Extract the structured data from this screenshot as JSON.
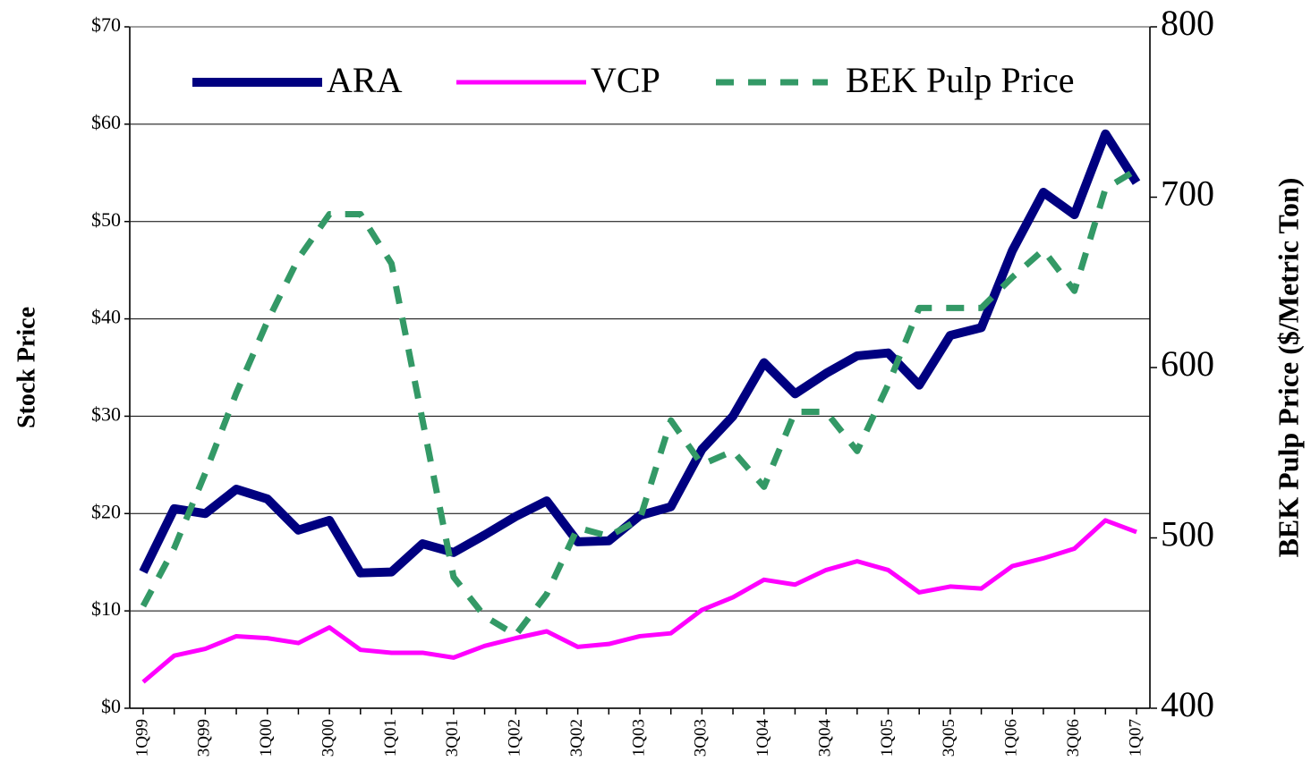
{
  "chart_data": {
    "type": "line",
    "y_label": "Stock Price",
    "y2_label": "BEK Pulp Price ($/Metric Ton)",
    "categories": [
      "1Q99",
      null,
      "3Q99",
      null,
      "1Q00",
      null,
      "3Q00",
      null,
      "1Q01",
      null,
      "3Q01",
      null,
      "1Q02",
      null,
      "3Q02",
      null,
      "1Q03",
      null,
      "3Q03",
      null,
      "1Q04",
      null,
      "3Q04",
      null,
      "1Q05",
      null,
      "3Q05",
      null,
      "1Q06",
      null,
      "3Q06",
      null,
      "1Q07"
    ],
    "series": [
      {
        "name": "ARA",
        "color": "#000080",
        "style": "solid",
        "width": 10,
        "values": [
          14,
          20.5,
          20,
          22.5,
          21.5,
          18.3,
          19.3,
          13.9,
          14,
          16.9,
          16,
          17.8,
          19.7,
          21.3,
          17.1,
          17.2,
          19.8,
          20.7,
          26.6,
          30,
          35.5,
          32.3,
          34.4,
          36.2,
          36.5,
          33.2,
          38.3,
          39.1,
          47,
          53,
          50.7,
          59,
          54
        ]
      },
      {
        "name": "VCP",
        "color": "#ff00ff",
        "style": "solid",
        "width": 5,
        "values": [
          2.7,
          5.4,
          6.1,
          7.4,
          7.2,
          6.7,
          8.3,
          6,
          5.7,
          5.7,
          5.2,
          6.4,
          7.2,
          7.9,
          6.3,
          6.6,
          7.4,
          7.7,
          10.1,
          11.4,
          13.2,
          12.7,
          14.2,
          15.1,
          14.2,
          11.9,
          12.5,
          12.3,
          14.6,
          15.4,
          16.4,
          19.3,
          18.1
        ]
      },
      {
        "name": "BEK Pulp Price",
        "color": "#339966",
        "style": "dashed",
        "width": 7,
        "axis": "y2",
        "values": [
          460,
          494,
          538,
          585,
          627,
          664,
          690,
          690,
          661,
          569,
          477,
          454,
          443,
          467,
          506,
          501,
          511,
          569,
          543,
          551,
          530,
          574,
          574,
          551,
          590,
          635,
          635,
          635,
          653,
          669,
          645,
          705,
          716
        ]
      }
    ],
    "ylim": [
      0,
      70
    ],
    "yticks": [
      {
        "value": 0,
        "label": "$0"
      },
      {
        "value": 10,
        "label": "$10"
      },
      {
        "value": 20,
        "label": "$20"
      },
      {
        "value": 30,
        "label": "$30"
      },
      {
        "value": 40,
        "label": "$40"
      },
      {
        "value": 50,
        "label": "$50"
      },
      {
        "value": 60,
        "label": "$60"
      },
      {
        "value": 70,
        "label": "$70"
      }
    ],
    "y2lim": [
      400,
      800
    ],
    "y2ticks": [
      400,
      500,
      600,
      700,
      800
    ],
    "grid": true,
    "legend": "top"
  }
}
